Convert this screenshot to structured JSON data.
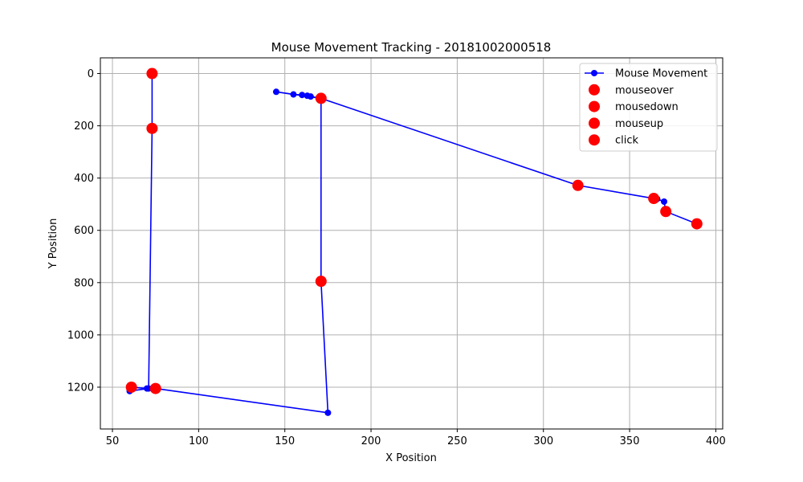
{
  "chart_data": {
    "type": "scatter",
    "title": "Mouse Movement Tracking - 20181002000518",
    "xlabel": "X Position",
    "ylabel": "Y Position",
    "xlim": [
      43,
      404
    ],
    "ylim": [
      1360,
      -60
    ],
    "y_inverted": true,
    "grid": true,
    "legend_position": "top-right",
    "x_ticks": [
      50,
      100,
      150,
      200,
      250,
      300,
      350,
      400
    ],
    "y_ticks": [
      0,
      200,
      400,
      600,
      800,
      1000,
      1200
    ],
    "series": [
      {
        "name": "Mouse Movement",
        "kind": "line",
        "color": "#0000ff",
        "x": [
          73,
          73,
          71,
          60,
          61,
          70,
          75,
          175,
          171,
          171,
          145,
          155,
          160,
          163,
          165,
          171,
          320,
          364,
          366,
          370,
          371,
          389
        ],
        "y": [
          0,
          210,
          1205,
          1215,
          1200,
          1205,
          1205,
          1298,
          795,
          95,
          70,
          80,
          82,
          85,
          88,
          95,
          428,
          478,
          480,
          490,
          528,
          575
        ]
      },
      {
        "name": "mouseover",
        "kind": "scatter",
        "color": "#ff0000",
        "x": [
          73,
          73,
          61,
          75,
          171,
          171,
          320,
          364,
          371,
          389
        ],
        "y": [
          0,
          210,
          1200,
          1205,
          795,
          95,
          428,
          478,
          528,
          575
        ]
      },
      {
        "name": "mousedown",
        "kind": "scatter",
        "color": "#ff0000",
        "x": [],
        "y": []
      },
      {
        "name": "mouseup",
        "kind": "scatter",
        "color": "#ff0000",
        "x": [],
        "y": []
      },
      {
        "name": "click",
        "kind": "scatter",
        "color": "#ff0000",
        "x": [],
        "y": []
      }
    ]
  }
}
